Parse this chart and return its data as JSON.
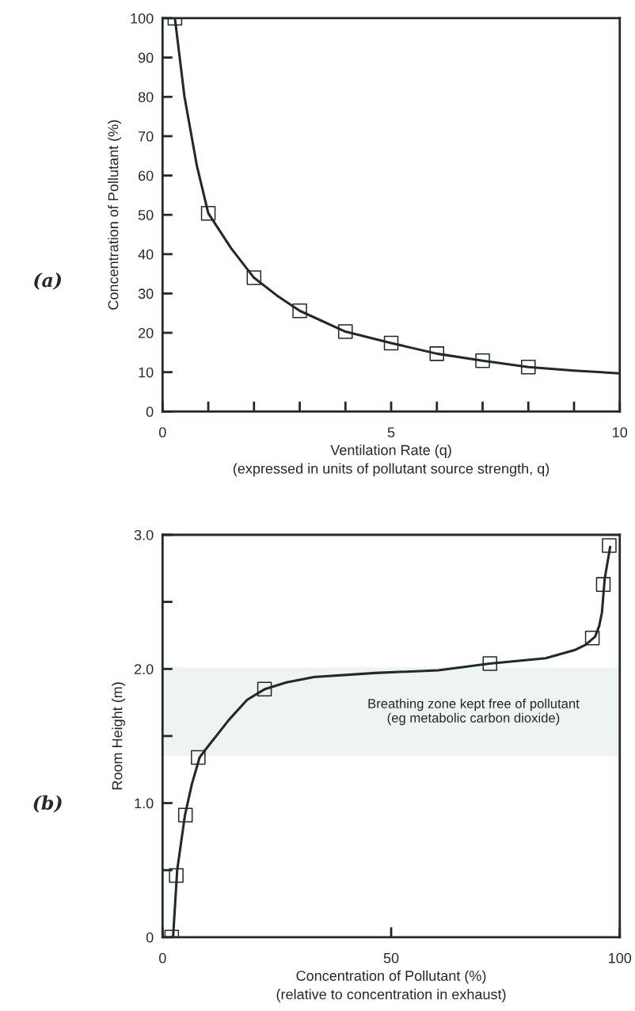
{
  "chart_data": [
    {
      "type": "line",
      "xlabel": "Ventilation Rate (q)\n(expressed in units of pollutant source strength, q)",
      "ylabel": "Concentration of Pollutant (%)",
      "annotations": [
        "(a)"
      ],
      "xlim": [
        0,
        10
      ],
      "ylim": [
        0,
        100
      ],
      "xticks": [
        0,
        {
          "value": 1,
          "label": null
        },
        {
          "value": 2,
          "label": null
        },
        {
          "value": 3,
          "label": null
        },
        {
          "value": 4,
          "label": null
        },
        5,
        {
          "value": 6,
          "label": null
        },
        {
          "value": 7,
          "label": null
        },
        {
          "value": 8,
          "label": null
        },
        {
          "value": 9,
          "label": null
        },
        10
      ],
      "yticks": [
        0,
        10,
        20,
        30,
        40,
        50,
        60,
        70,
        80,
        90,
        100
      ],
      "grid": false,
      "legend": false,
      "series": [
        {
          "marker": "none",
          "line_style": "solid",
          "color": "#222a28",
          "x": [
            0.27,
            0.48,
            0.75,
            1,
            1.5,
            2,
            2.5,
            3,
            4,
            5,
            6,
            7,
            8,
            9,
            10
          ],
          "values": [
            100,
            80,
            62.5,
            50.4,
            41.5,
            34,
            29.5,
            25.6,
            20.3,
            17.4,
            14.7,
            12.9,
            11.3,
            10.4,
            9.7
          ]
        },
        {
          "type": "scatter",
          "marker": "square",
          "color": "#222a28",
          "x": [
            0.27,
            1,
            2,
            3,
            4,
            5,
            6,
            7,
            8
          ],
          "values": [
            100,
            50.4,
            34,
            25.6,
            20.3,
            17.4,
            14.7,
            12.9,
            11.3
          ]
        }
      ]
    },
    {
      "type": "line",
      "xlabel": "Concentration of Pollutant (%)\n(relative to concentration in exhaust)",
      "ylabel": "Room Height (m)",
      "annotations": [
        "(b)"
      ],
      "xlim": [
        0,
        100
      ],
      "ylim": [
        0,
        3.0
      ],
      "xticks": [
        0,
        50,
        100
      ],
      "yticks": [
        0,
        {
          "value": 0.5,
          "label": null
        },
        {
          "value": 1.0,
          "label": "1.0"
        },
        {
          "value": 1.5,
          "label": null
        },
        {
          "value": 2.0,
          "label": "2.0"
        },
        {
          "value": 2.5,
          "label": null
        },
        {
          "value": 3.0,
          "label": "3.0"
        }
      ],
      "grid": false,
      "legend": false,
      "bands": [
        {
          "axis": "y",
          "from": 1.35,
          "to": 2.01,
          "label": "Breathing zone kept free of pollutant\n(eg metabolic carbon dioxide)",
          "color": "#eef3f3"
        }
      ],
      "series": [
        {
          "marker": "none",
          "line_style": "solid",
          "color": "#222a28",
          "x": [
            2.3,
            3.2,
            4.9,
            6.4,
            8.1,
            9.2,
            14.5,
            18.5,
            22.4,
            27.1,
            33.1,
            46.5,
            60.3,
            71.6,
            83.8,
            90.1,
            92.5,
            94.6,
            95.5,
            96.1,
            96.7,
            97.9
          ],
          "values": [
            0,
            0.5,
            0.91,
            1.14,
            1.34,
            1.39,
            1.62,
            1.77,
            1.85,
            1.9,
            1.94,
            1.97,
            1.99,
            2.04,
            2.08,
            2.14,
            2.18,
            2.24,
            2.32,
            2.42,
            2.67,
            2.91
          ]
        },
        {
          "type": "scatter",
          "marker": "square",
          "color": "#222a28",
          "x": [
            2.0,
            3.0,
            5.0,
            7.8,
            22.3,
            71.6,
            94.0,
            96.4,
            97.7
          ],
          "values": [
            0,
            0.46,
            0.91,
            1.34,
            1.85,
            2.04,
            2.23,
            2.63,
            2.92
          ]
        }
      ]
    }
  ]
}
